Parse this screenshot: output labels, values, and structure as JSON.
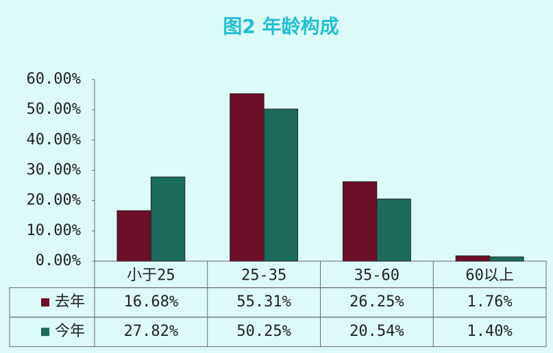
{
  "chart_data": {
    "type": "bar",
    "title": "图2 年龄构成",
    "categories": [
      "小于25",
      "25-35",
      "35-60",
      "60以上"
    ],
    "series": [
      {
        "name": "去年",
        "color": "#6e0f2a",
        "values": [
          16.68,
          55.31,
          26.25,
          1.76
        ],
        "value_labels": [
          "16.68%",
          "55.31%",
          "26.25%",
          "1.76%"
        ]
      },
      {
        "name": "今年",
        "color": "#1d6b5a",
        "values": [
          27.82,
          50.25,
          20.54,
          1.4
        ],
        "value_labels": [
          "27.82%",
          "50.25%",
          "20.54%",
          "1.40%"
        ]
      }
    ],
    "ylim": [
      0,
      60
    ],
    "yticks": [
      {
        "value": 0,
        "label": "0.00%"
      },
      {
        "value": 10,
        "label": "10.00%"
      },
      {
        "value": 20,
        "label": "20.00%"
      },
      {
        "value": 30,
        "label": "30.00%"
      },
      {
        "value": 40,
        "label": "40.00%"
      },
      {
        "value": 50,
        "label": "50.00%"
      },
      {
        "value": 60,
        "label": "60.00%"
      }
    ],
    "grid": false
  }
}
